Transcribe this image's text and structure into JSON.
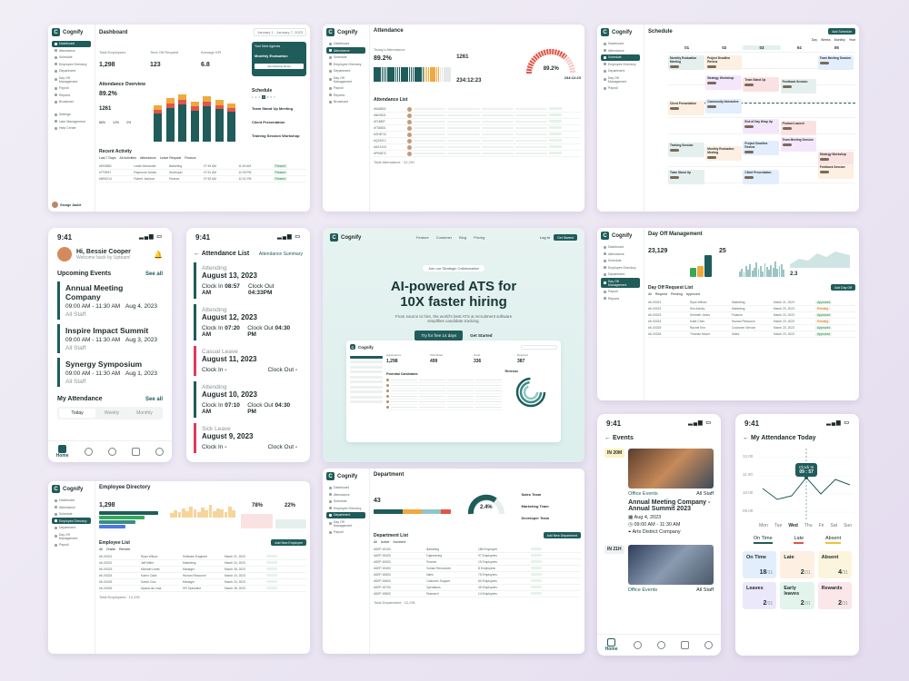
{
  "brand": "Cognify",
  "colors": {
    "primary": "#1f5c5a",
    "accent": "#f0a93c",
    "danger": "#e0395a"
  },
  "dashboard": {
    "title": "Dashboard",
    "stats": [
      {
        "label": "Total Employees",
        "value": "1,298"
      },
      {
        "label": "Time Off Request",
        "value": "123"
      },
      {
        "label": "Average KPI",
        "value": "6.8"
      }
    ],
    "attendance_title": "Attendance Overview",
    "attendance_value": "89.2%",
    "count": "1261",
    "percents": [
      "86%",
      "12%",
      "2%"
    ],
    "recent_title": "Recent Activity",
    "filter": "Last 7 Days",
    "tabs": [
      "All Activities",
      "Attendance",
      "Leave Request",
      "Finance"
    ],
    "meeting": "Monthly Evaluation",
    "schedule_title": "Schedule",
    "schedule": [
      "Team Stand Up Meeting",
      "Client Presentation",
      "Training Session Workshop"
    ],
    "rows": [
      [
        "#EK5882",
        "Leslie Alexander",
        "Marketing",
        "07:49 AM",
        "11:49 AM",
        "Present"
      ],
      [
        "#TF8937",
        "Raymond James",
        "Developer",
        "07:51 AM",
        "12:39 PM",
        "Present"
      ],
      [
        "#NE6214",
        "Robert Jackson",
        "Finance",
        "07:52 AM",
        "12:31 PM",
        "Present"
      ]
    ],
    "user": "George Jaulet",
    "date_range": "January 1 - January 7, 2023"
  },
  "attendance_page": {
    "title": "Attendance",
    "today": "Today's Attendance",
    "value": "89.2%",
    "count1": "1261",
    "timer": "234:12:23",
    "rate": "89.2%",
    "rate2": "234:12:23",
    "list_title": "Attendance List",
    "rows": [
      "#KA8802",
      "#NK9821",
      "#F18897",
      "#TS8801",
      "#GH8712",
      "#Q19212",
      "#AG1243",
      "#PH9872"
    ],
    "total": "Total Attendance : 12,291"
  },
  "schedule_page": {
    "title": "Schedule",
    "views": [
      "Day",
      "Weeks",
      "Monthly",
      "Year"
    ],
    "btn": "Add Schedule",
    "days": [
      "01",
      "02",
      "03",
      "04",
      "05"
    ],
    "events": [
      "Monthly Evaluation Meeting",
      "Project Deadline Review",
      "Team Meeting Session",
      "Strategy Workshop",
      "Team Stand Up",
      "Feedback Session",
      "Client Presentation",
      "Community Interactive",
      "End of Day Wrap Up",
      "Product Launch",
      "Training Session"
    ]
  },
  "phone_home": {
    "time": "9:41",
    "greeting": "Hi, Bessie Cooper",
    "sub": "Welcome back by Upteam!",
    "upcoming": "Upcoming Events",
    "see_all": "See all",
    "events": [
      {
        "title": "Annual Meeting Company",
        "time": "09:00 AM - 11:30 AM",
        "date": "Aug 4, 2023",
        "staff": "All Staff"
      },
      {
        "title": "Inspire Impact Summit",
        "time": "09:00 AM - 11:30 AM",
        "date": "Aug 3, 2023",
        "staff": "All Staff"
      },
      {
        "title": "Synergy Symposium",
        "time": "09:00 AM - 11:30 AM",
        "date": "Aug 1, 2023",
        "staff": "All Staff"
      }
    ],
    "my_attendance": "My Attendance",
    "see_all2": "See all",
    "tabs": [
      "Today",
      "Weekly",
      "Monthly"
    ],
    "nav_home": "Home"
  },
  "phone_att": {
    "time": "9:41",
    "title": "Attendance List",
    "summary": "Attendance Summary",
    "items": [
      {
        "label": "Attending",
        "date": "August 13, 2023",
        "in": "Clock In",
        "in_t": "08:57 AM",
        "out": "Clock Out",
        "out_t": "04:33PM",
        "red": false
      },
      {
        "label": "Attending",
        "date": "August 12, 2023",
        "in": "Clock In",
        "in_t": "07:20 AM",
        "out": "Clock Out",
        "out_t": "04:30 PM",
        "red": false
      },
      {
        "label": "Casual Leave",
        "date": "August 11, 2023",
        "in": "Clock In",
        "in_t": "-",
        "out": "Clock Out",
        "out_t": "-",
        "red": true
      },
      {
        "label": "Attending",
        "date": "August 10, 2023",
        "in": "Clock In",
        "in_t": "07:10 AM",
        "out": "Clock Out",
        "out_t": "04:30 PM",
        "red": false
      },
      {
        "label": "Sick Leave",
        "date": "August 9, 2023",
        "in": "Clock In",
        "in_t": "-",
        "out": "Clock Out",
        "out_t": "-",
        "red": true
      }
    ]
  },
  "landing": {
    "nav": [
      "Feature",
      "Customer",
      "Blog",
      "Pricing"
    ],
    "login": "Log In",
    "start": "Get Started",
    "badge": "Join our Strategic Collaboration",
    "headline1": "AI-powered ATS for",
    "headline2": "10X faster hiring",
    "desc": "From source to hire, the world's best ATS & recruitment software simplifies candidate tracking.",
    "try": "Try for free 14 days",
    "get": "Get Started",
    "mock_stats": [
      {
        "label": "Applications",
        "value": "1,298"
      },
      {
        "label": "Shortlisted",
        "value": "499"
      },
      {
        "label": "Hired",
        "value": "336"
      },
      {
        "label": "Rejected",
        "value": "387"
      }
    ],
    "candidates": "Potential Candidates",
    "revenue": "Revenue"
  },
  "dayoff": {
    "title": "Day Off Management",
    "total": "23,129",
    "stat2": "25",
    "stat3": "2.3",
    "list": "Day Off Request List",
    "tabs": [
      "All",
      "Request",
      "Pending",
      "Approved"
    ],
    "btn": "Add Day Off",
    "rows": [
      [
        "#K-00321",
        "Ryan Wilson",
        "Marketing",
        "March 21, 2023",
        "Approved"
      ],
      [
        "#K-00322",
        "Kim Ashley",
        "Marketing",
        "March 23, 2023",
        "Pending"
      ],
      [
        "#K-00323",
        "Kenneth Jones",
        "Finance",
        "March 23, 2023",
        "Approved"
      ],
      [
        "#K-00324",
        "Katie Chen",
        "Human Resource",
        "March 23, 2023",
        "Pending"
      ],
      [
        "#K-00325",
        "Rachel Kim",
        "Customer Service",
        "March 23, 2023",
        "Approved"
      ],
      [
        "#K-00326",
        "Thomas Moore",
        "Sales",
        "March 23, 2023",
        "Approved"
      ]
    ]
  },
  "events_phone": {
    "time": "9:41",
    "title": "Events",
    "date1": "IN 20M",
    "office": "Office Events",
    "staff": "All Staff",
    "event_title": "Annual Meeting Company - Annual Summit 2023",
    "date": "Aug 4, 2023",
    "hours": "09:00 AM - 11:30 AM",
    "loc": "Arts District Company",
    "date2": "IN 21H",
    "office2": "Office Events",
    "staff2": "All Staff",
    "nav_home": "Home"
  },
  "my_att_phone": {
    "time": "9:41",
    "title": "My Attendance Today",
    "clock": "Clock In",
    "clock_t": "09 : 57",
    "days": [
      "Mon",
      "Tue",
      "Wed",
      "Thu",
      "Fri",
      "Sat",
      "Sun"
    ],
    "ticks": [
      "12.00",
      "11.00",
      "10.00",
      "09.00"
    ],
    "legend": [
      "On Time",
      "Late",
      "Absent"
    ],
    "tiles": [
      {
        "label": "On Time",
        "value": "18",
        "max": "/31",
        "bg": "#e3eefc"
      },
      {
        "label": "Late",
        "value": "2",
        "max": "/31",
        "bg": "#fdefe1"
      },
      {
        "label": "Absent",
        "value": "4",
        "max": "/31",
        "bg": "#fbf5dd"
      },
      {
        "label": "Leaves",
        "value": "2",
        "max": "/31",
        "bg": "#ece8fb"
      },
      {
        "label": "Early leaves",
        "value": "2",
        "max": "/31",
        "bg": "#e2f4ec"
      },
      {
        "label": "Rewards",
        "value": "2",
        "max": "/31",
        "bg": "#fbe6ea"
      }
    ]
  },
  "directory": {
    "title": "Employee Directory",
    "total": "1,298",
    "stat2": "25",
    "p1": "78%",
    "p2": "22%",
    "list": "Employee List",
    "tabs": [
      "All",
      "Onsite",
      "Remote"
    ],
    "btn": "Add New Employee",
    "rows": [
      [
        "#K-00321",
        "Ryan Wilson",
        "Software Engineer",
        "March 21, 2023"
      ],
      [
        "#K-00322",
        "Jeff Miller",
        "Marketing",
        "March 24, 2023"
      ],
      [
        "#K-00323",
        "Michael Lewis",
        "Manager",
        "March 28, 2023"
      ],
      [
        "#K-00324",
        "Karen Clark",
        "Human Resource",
        "March 24, 2023"
      ],
      [
        "#K-00325",
        "Sarah Cruz",
        "Manager",
        "March 24, 2023"
      ],
      [
        "#K-00326",
        "Alyssa da Lima",
        "HR Specialist",
        "March 28, 2023"
      ]
    ],
    "total_row": "Total Employees : 12,291"
  },
  "department": {
    "title": "Department",
    "count": "43",
    "donut": "2.4%",
    "teams": [
      "Sales Team",
      "Marketing Team",
      "Developer Team"
    ],
    "list": "Department List",
    "tabs": [
      "All",
      "Active",
      "Archived"
    ],
    "btn": "Add New Department",
    "rows": [
      [
        "#DEP-00100",
        "Marketing",
        "186 Employee"
      ],
      [
        "#DEP-00200",
        "Engineering",
        "97 Employees"
      ],
      [
        "#DEP-00300",
        "Finance",
        "15 Employees"
      ],
      [
        "#DEP-00400",
        "Human Resources",
        "8 Employees"
      ],
      [
        "#DEP-00500",
        "Sales",
        "75 Employees"
      ],
      [
        "#DEP-00600",
        "Customer Support",
        "60 Employees"
      ],
      [
        "#DEP-00700",
        "Operations",
        "45 Employees"
      ],
      [
        "#DEP-00800",
        "Research",
        "14 Employees"
      ]
    ],
    "total_row": "Total Department : 12,291"
  }
}
